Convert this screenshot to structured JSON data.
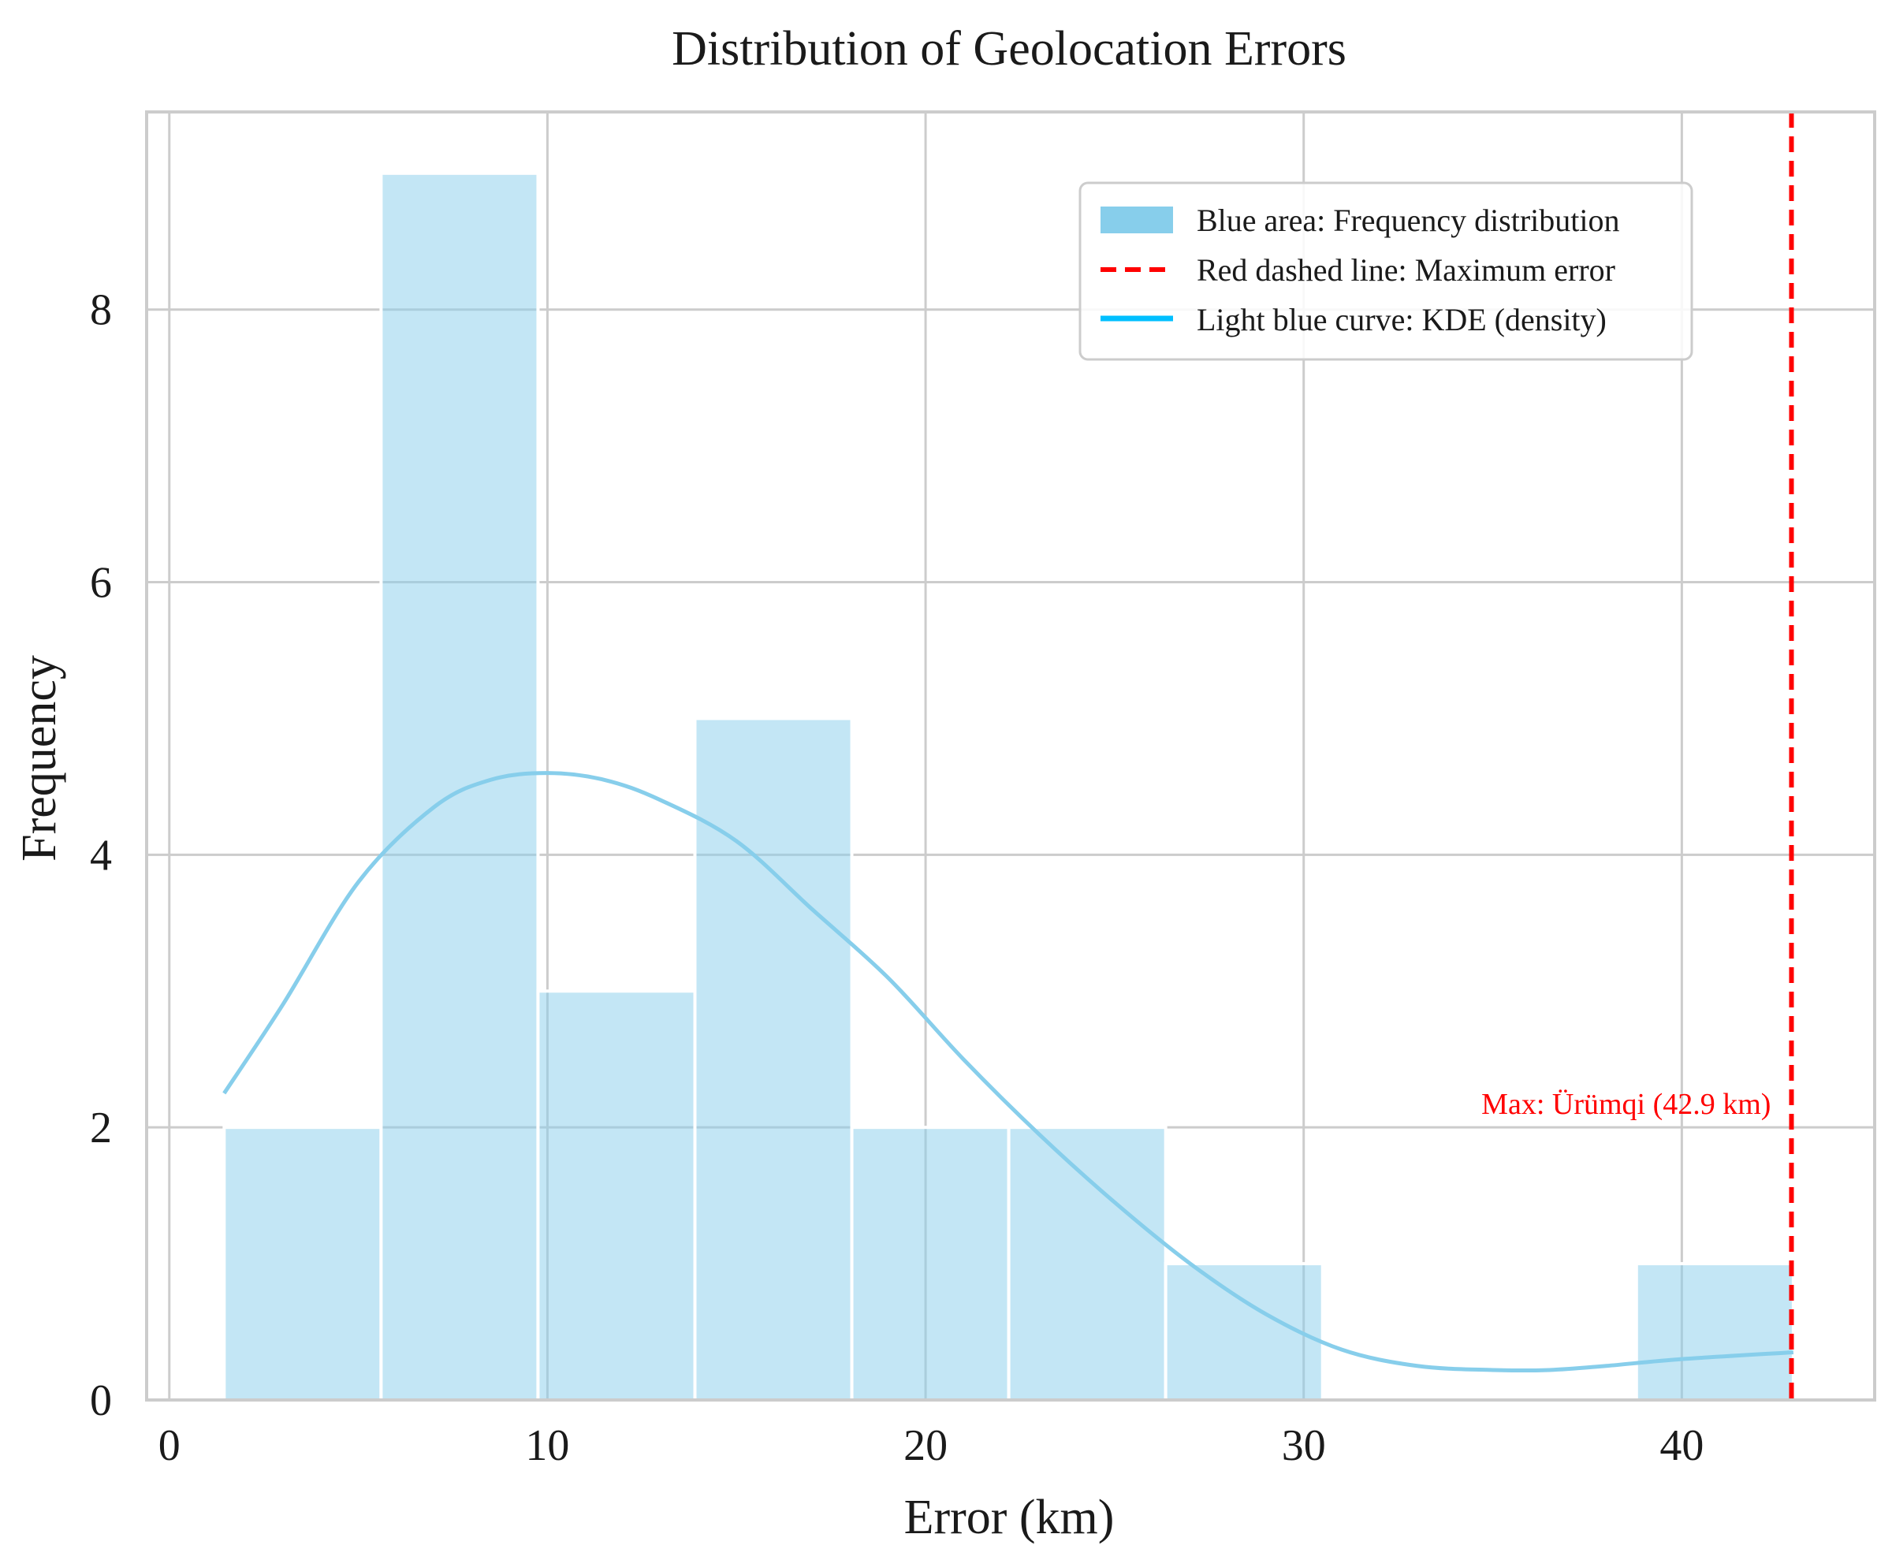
{
  "chart_data": {
    "type": "bar",
    "title": "Distribution of Geolocation Errors",
    "xlabel": "Error (km)",
    "ylabel": "Frequency",
    "xlim": [
      -0.6,
      45.1
    ],
    "ylim": [
      0,
      9.45
    ],
    "xticks": [
      0,
      10,
      20,
      30,
      40
    ],
    "yticks": [
      0,
      2,
      4,
      6,
      8
    ],
    "grid": true,
    "bins": [
      {
        "x0": 1.45,
        "x1": 5.6,
        "count": 2
      },
      {
        "x0": 5.6,
        "x1": 9.75,
        "count": 9
      },
      {
        "x0": 9.75,
        "x1": 13.9,
        "count": 3
      },
      {
        "x0": 13.9,
        "x1": 18.05,
        "count": 5
      },
      {
        "x0": 18.05,
        "x1": 22.2,
        "count": 2
      },
      {
        "x0": 22.2,
        "x1": 26.35,
        "count": 2
      },
      {
        "x0": 26.35,
        "x1": 30.5,
        "count": 1
      },
      {
        "x0": 30.5,
        "x1": 34.65,
        "count": 0
      },
      {
        "x0": 34.65,
        "x1": 38.8,
        "count": 0
      },
      {
        "x0": 38.8,
        "x1": 42.95,
        "count": 1
      }
    ],
    "kde": {
      "x": [
        1.45,
        3,
        5,
        7,
        8.5,
        10,
        11.5,
        13,
        15,
        17,
        19,
        21,
        23,
        25,
        27,
        29,
        31,
        33,
        35,
        36.5,
        38,
        40,
        42.95
      ],
      "y": [
        2.25,
        2.9,
        3.8,
        4.35,
        4.55,
        4.6,
        4.55,
        4.4,
        4.1,
        3.6,
        3.1,
        2.5,
        1.95,
        1.45,
        1.0,
        0.63,
        0.37,
        0.25,
        0.22,
        0.22,
        0.25,
        0.3,
        0.35
      ]
    },
    "max_line": {
      "x": 42.9,
      "label": "Max: Ürümqi (42.9 km)"
    },
    "legend": {
      "position": "top-right",
      "entries": [
        "Blue area: Frequency distribution",
        "Red dashed line: Maximum error",
        "Light blue curve: KDE (density)"
      ]
    },
    "colors": {
      "bar_fill": "#87ceeb",
      "bar_fill_opacity": 0.5,
      "kde_line": "#87ceeb",
      "legend_kde_line": "#00bfff",
      "max_line": "#ff0000",
      "grid": "#cccccc",
      "frame": "#cccccc"
    }
  }
}
